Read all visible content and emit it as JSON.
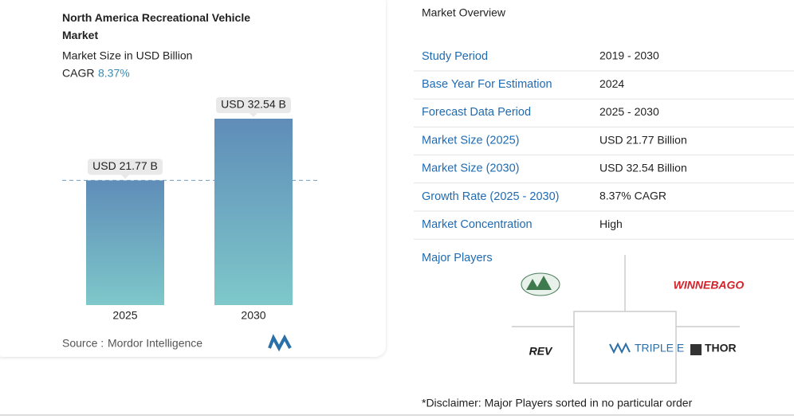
{
  "chart_data": {
    "type": "bar",
    "title": "North America Recreational Vehicle Market",
    "subtitle": "Market Size in USD Billion",
    "cagr_label": "CAGR",
    "cagr_value": "8.37%",
    "categories": [
      "2025",
      "2030"
    ],
    "values": [
      21.77,
      32.54
    ],
    "value_labels": [
      "USD 21.77 B",
      "USD 32.54 B"
    ],
    "gradient": [
      "#5f8db8",
      "#7ec8ca"
    ],
    "source_label": "Source :",
    "source": "Mordor Intelligence"
  },
  "overview": {
    "title": "Market Overview",
    "rows": [
      [
        "Study Period",
        "2019 - 2030"
      ],
      [
        "Base Year For Estimation",
        "2024"
      ],
      [
        "Forecast Data Period",
        "2025 - 2030"
      ],
      [
        "Market Size (2025)",
        "USD 21.77 Billion"
      ],
      [
        "Market Size (2030)",
        "USD 32.54 Billion"
      ],
      [
        "Growth Rate (2025 - 2030)",
        "8.37% CAGR"
      ],
      [
        "Market Concentration",
        "High"
      ]
    ],
    "players_label": "Major Players",
    "players": [
      "WINNEBAGO",
      "REV",
      "TRIPLE E",
      "THOR"
    ],
    "disclaimer": "*Disclaimer: Major Players sorted in no particular order"
  }
}
